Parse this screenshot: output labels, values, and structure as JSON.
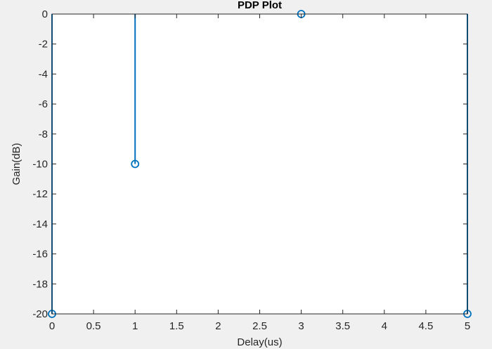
{
  "colors": {
    "figure_bg": "#f0f0f0",
    "axes_bg": "#ffffff",
    "axis": "#262626",
    "series": "#0072bd"
  },
  "chart_data": {
    "type": "stem",
    "title": "PDP Plot",
    "xlabel": "Delay(us)",
    "ylabel": "Gain(dB)",
    "xlim": [
      0,
      5
    ],
    "ylim": [
      -20,
      0
    ],
    "xticks": [
      0,
      0.5,
      1,
      1.5,
      2,
      2.5,
      3,
      3.5,
      4,
      4.5,
      5
    ],
    "xtick_labels": [
      "0",
      "0.5",
      "1",
      "1.5",
      "2",
      "2.5",
      "3",
      "3.5",
      "4",
      "4.5",
      "5"
    ],
    "yticks": [
      0,
      -2,
      -4,
      -6,
      -8,
      -10,
      -12,
      -14,
      -16,
      -18,
      -20
    ],
    "ytick_labels": [
      "0",
      "-2",
      "-4",
      "-6",
      "-8",
      "-10",
      "-12",
      "-14",
      "-16",
      "-18",
      "-20"
    ],
    "grid": false,
    "stem_baseline": 0,
    "marker": "circle",
    "series": [
      {
        "x": [
          0,
          1,
          3,
          5
        ],
        "y": [
          -20,
          -10,
          0,
          -20
        ]
      }
    ]
  }
}
